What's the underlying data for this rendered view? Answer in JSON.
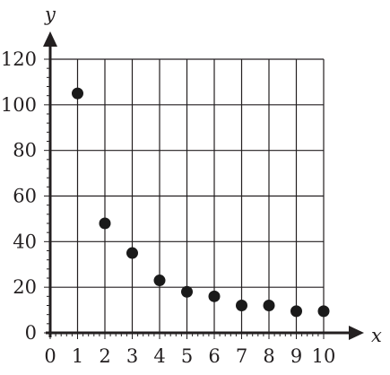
{
  "chart_data": {
    "type": "scatter",
    "title": "",
    "xlabel": "x",
    "ylabel": "y",
    "xlim": [
      0,
      10
    ],
    "ylim": [
      0,
      120
    ],
    "x_ticks": [
      0,
      1,
      2,
      3,
      4,
      5,
      6,
      7,
      8,
      9,
      10
    ],
    "y_ticks": [
      0,
      20,
      40,
      60,
      80,
      100,
      120
    ],
    "grid": true,
    "minor_ticks_y": 4,
    "minor_ticks_x": 4,
    "point_color": "#1a1a1a",
    "grid_color": "#231f20",
    "points": [
      {
        "x": 1,
        "y": 105
      },
      {
        "x": 2,
        "y": 48
      },
      {
        "x": 3,
        "y": 35
      },
      {
        "x": 4,
        "y": 23
      },
      {
        "x": 5,
        "y": 18
      },
      {
        "x": 6,
        "y": 16
      },
      {
        "x": 7,
        "y": 12
      },
      {
        "x": 8,
        "y": 12
      },
      {
        "x": 9,
        "y": 9.5
      },
      {
        "x": 10,
        "y": 9.5
      }
    ]
  }
}
